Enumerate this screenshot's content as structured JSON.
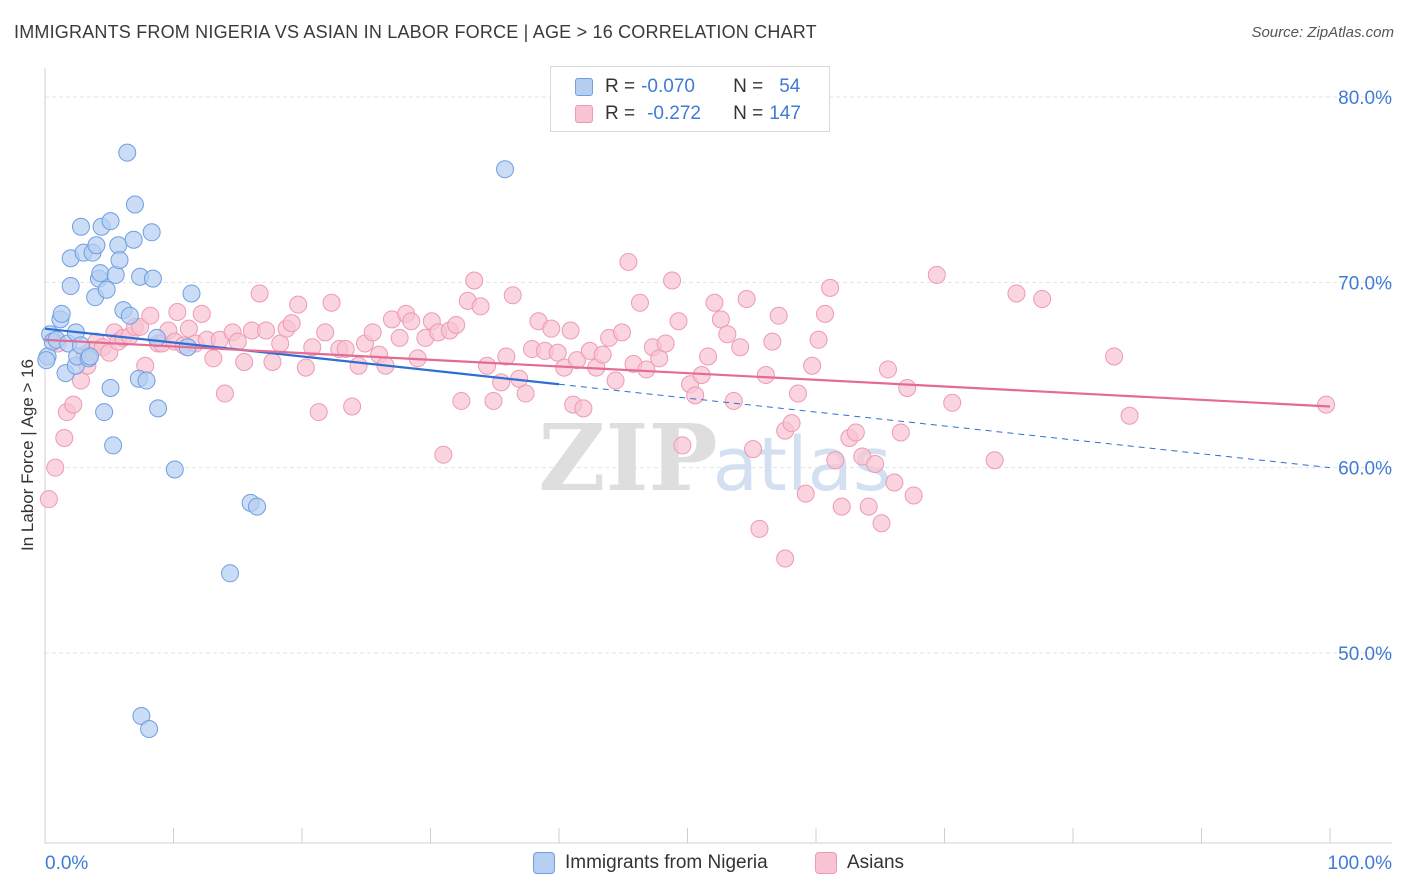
{
  "title": "IMMIGRANTS FROM NIGERIA VS ASIAN IN LABOR FORCE | AGE > 16 CORRELATION CHART",
  "source": "Source: ZipAtlas.com",
  "watermark": {
    "zip": "ZIP",
    "atlas": "atlas"
  },
  "colors": {
    "nigeria_fill": "#b5cef2",
    "nigeria_stroke": "#6f9fdf",
    "nigeria_line": "#2d6fd2",
    "asian_fill": "#f8c4d3",
    "asian_stroke": "#ee9ab3",
    "asian_line": "#e46b93",
    "axis_text": "#3f7bd6"
  },
  "legend": {
    "rows": [
      {
        "r_label": "R = ",
        "r_value": "-0.070",
        "n_label": "N = ",
        "n_value": "54"
      },
      {
        "r_label": "R = ",
        "r_value": "-0.272",
        "n_label": "N = ",
        "n_value": "147"
      }
    ]
  },
  "bottom_legend": [
    "Immigrants from Nigeria",
    "Asians"
  ],
  "chart_data": {
    "type": "scatter",
    "title": "IMMIGRANTS FROM NIGERIA VS ASIAN IN LABOR FORCE | AGE > 16 CORRELATION CHART",
    "xlabel": "",
    "ylabel": "In Labor Force | Age > 16",
    "xlim": [
      0,
      100
    ],
    "ylim": [
      41,
      81
    ],
    "x_tick_labels": [
      "0.0%",
      "100.0%"
    ],
    "y_ticks": [
      50,
      60,
      70,
      80
    ],
    "y_tick_labels": [
      "50.0%",
      "60.0%",
      "70.0%",
      "80.0%"
    ],
    "grid": true,
    "legend_position": "top-center",
    "series": [
      {
        "name": "Immigrants from Nigeria",
        "R": -0.07,
        "N": 54,
        "trend": {
          "x": [
            0,
            40,
            100
          ],
          "y": [
            67.5,
            64.5,
            60.0
          ],
          "solid_until_x": 40
        },
        "points": [
          [
            0.2,
            66.0
          ],
          [
            0.4,
            67.2
          ],
          [
            0.6,
            66.8
          ],
          [
            0.9,
            66.9
          ],
          [
            1.2,
            68.0
          ],
          [
            1.3,
            68.3
          ],
          [
            1.6,
            65.1
          ],
          [
            1.8,
            66.7
          ],
          [
            2.0,
            69.8
          ],
          [
            2.0,
            71.3
          ],
          [
            2.4,
            67.3
          ],
          [
            2.4,
            65.5
          ],
          [
            2.5,
            66.0
          ],
          [
            2.8,
            73.0
          ],
          [
            2.8,
            66.6
          ],
          [
            3.0,
            71.6
          ],
          [
            3.4,
            65.9
          ],
          [
            3.5,
            66.0
          ],
          [
            3.7,
            71.6
          ],
          [
            3.9,
            69.2
          ],
          [
            4.0,
            72.0
          ],
          [
            4.2,
            70.2
          ],
          [
            4.3,
            70.5
          ],
          [
            4.4,
            73.0
          ],
          [
            4.6,
            63.0
          ],
          [
            4.8,
            69.6
          ],
          [
            5.1,
            73.3
          ],
          [
            5.1,
            64.3
          ],
          [
            5.3,
            61.2
          ],
          [
            5.5,
            70.4
          ],
          [
            5.7,
            72.0
          ],
          [
            5.8,
            71.2
          ],
          [
            6.1,
            68.5
          ],
          [
            6.4,
            77.0
          ],
          [
            6.6,
            68.2
          ],
          [
            6.9,
            72.3
          ],
          [
            7.0,
            74.2
          ],
          [
            7.3,
            64.8
          ],
          [
            7.4,
            70.3
          ],
          [
            7.5,
            46.6
          ],
          [
            7.9,
            64.7
          ],
          [
            8.1,
            45.9
          ],
          [
            8.3,
            72.7
          ],
          [
            8.4,
            70.2
          ],
          [
            8.7,
            67.0
          ],
          [
            8.8,
            63.2
          ],
          [
            10.1,
            59.9
          ],
          [
            11.1,
            66.5
          ],
          [
            11.4,
            69.4
          ],
          [
            14.4,
            54.3
          ],
          [
            16.0,
            58.1
          ],
          [
            16.5,
            57.9
          ],
          [
            35.8,
            76.1
          ],
          [
            0.1,
            65.8
          ]
        ]
      },
      {
        "name": "Asians",
        "R": -0.272,
        "N": 147,
        "trend": {
          "x": [
            0,
            100
          ],
          "y": [
            66.9,
            63.3
          ]
        },
        "points": [
          [
            0.3,
            58.3
          ],
          [
            0.8,
            60.0
          ],
          [
            1.0,
            66.7
          ],
          [
            1.5,
            61.6
          ],
          [
            1.7,
            63.0
          ],
          [
            2.2,
            63.4
          ],
          [
            2.8,
            64.7
          ],
          [
            3.1,
            66.1
          ],
          [
            3.3,
            65.5
          ],
          [
            3.6,
            66.3
          ],
          [
            4.0,
            66.8
          ],
          [
            4.5,
            66.5
          ],
          [
            5.0,
            66.2
          ],
          [
            5.4,
            67.3
          ],
          [
            5.7,
            66.8
          ],
          [
            6.1,
            67.0
          ],
          [
            6.6,
            67.1
          ],
          [
            7.0,
            67.6
          ],
          [
            7.4,
            67.6
          ],
          [
            7.8,
            65.5
          ],
          [
            8.2,
            68.2
          ],
          [
            8.8,
            66.7
          ],
          [
            9.1,
            66.7
          ],
          [
            9.6,
            67.4
          ],
          [
            10.1,
            66.8
          ],
          [
            10.3,
            68.4
          ],
          [
            10.8,
            66.6
          ],
          [
            11.2,
            67.5
          ],
          [
            11.7,
            66.7
          ],
          [
            12.2,
            68.3
          ],
          [
            12.6,
            66.9
          ],
          [
            13.1,
            65.9
          ],
          [
            13.6,
            66.9
          ],
          [
            14.0,
            64.0
          ],
          [
            14.6,
            67.3
          ],
          [
            15.0,
            66.8
          ],
          [
            15.5,
            65.7
          ],
          [
            16.1,
            67.4
          ],
          [
            16.7,
            69.4
          ],
          [
            17.2,
            67.4
          ],
          [
            17.7,
            65.7
          ],
          [
            18.3,
            66.7
          ],
          [
            18.8,
            67.5
          ],
          [
            19.2,
            67.8
          ],
          [
            19.7,
            68.8
          ],
          [
            20.3,
            65.4
          ],
          [
            20.8,
            66.5
          ],
          [
            21.3,
            63.0
          ],
          [
            21.8,
            67.3
          ],
          [
            22.3,
            68.9
          ],
          [
            22.9,
            66.4
          ],
          [
            23.4,
            66.4
          ],
          [
            23.9,
            63.3
          ],
          [
            24.4,
            65.5
          ],
          [
            24.9,
            66.7
          ],
          [
            25.5,
            67.3
          ],
          [
            26.0,
            66.1
          ],
          [
            26.5,
            65.5
          ],
          [
            27.0,
            68.0
          ],
          [
            27.6,
            67.0
          ],
          [
            28.1,
            68.3
          ],
          [
            28.5,
            67.9
          ],
          [
            29.0,
            65.9
          ],
          [
            29.6,
            67.0
          ],
          [
            30.1,
            67.9
          ],
          [
            30.6,
            67.3
          ],
          [
            31.0,
            60.7
          ],
          [
            31.5,
            67.4
          ],
          [
            32.0,
            67.7
          ],
          [
            32.4,
            63.6
          ],
          [
            32.9,
            69.0
          ],
          [
            33.4,
            70.1
          ],
          [
            33.9,
            68.7
          ],
          [
            34.4,
            65.5
          ],
          [
            34.9,
            63.6
          ],
          [
            35.5,
            64.6
          ],
          [
            35.9,
            66.0
          ],
          [
            36.4,
            69.3
          ],
          [
            36.9,
            64.8
          ],
          [
            37.4,
            64.0
          ],
          [
            37.9,
            66.4
          ],
          [
            38.4,
            67.9
          ],
          [
            38.9,
            66.3
          ],
          [
            39.4,
            67.5
          ],
          [
            39.9,
            66.2
          ],
          [
            40.4,
            65.4
          ],
          [
            40.9,
            67.4
          ],
          [
            41.1,
            63.4
          ],
          [
            41.4,
            65.8
          ],
          [
            41.9,
            63.2
          ],
          [
            42.4,
            66.3
          ],
          [
            42.9,
            65.4
          ],
          [
            43.4,
            66.1
          ],
          [
            43.9,
            67.0
          ],
          [
            44.4,
            64.7
          ],
          [
            44.9,
            67.3
          ],
          [
            45.4,
            71.1
          ],
          [
            45.8,
            65.6
          ],
          [
            46.3,
            68.9
          ],
          [
            46.8,
            65.3
          ],
          [
            47.3,
            66.5
          ],
          [
            47.8,
            65.9
          ],
          [
            48.3,
            66.7
          ],
          [
            48.8,
            70.1
          ],
          [
            49.3,
            67.9
          ],
          [
            49.6,
            61.2
          ],
          [
            50.2,
            64.5
          ],
          [
            50.6,
            63.9
          ],
          [
            51.1,
            65.0
          ],
          [
            51.6,
            66.0
          ],
          [
            52.1,
            68.9
          ],
          [
            52.6,
            68.0
          ],
          [
            53.1,
            67.2
          ],
          [
            53.6,
            63.6
          ],
          [
            54.1,
            66.5
          ],
          [
            54.6,
            69.1
          ],
          [
            55.1,
            61.0
          ],
          [
            55.6,
            56.7
          ],
          [
            56.1,
            65.0
          ],
          [
            56.6,
            66.8
          ],
          [
            57.1,
            68.2
          ],
          [
            57.6,
            62.0
          ],
          [
            58.1,
            62.4
          ],
          [
            58.6,
            64.0
          ],
          [
            59.2,
            58.6
          ],
          [
            59.7,
            65.5
          ],
          [
            60.2,
            66.9
          ],
          [
            60.7,
            68.3
          ],
          [
            61.1,
            69.7
          ],
          [
            61.5,
            60.4
          ],
          [
            62.0,
            57.9
          ],
          [
            62.6,
            61.6
          ],
          [
            63.1,
            61.9
          ],
          [
            63.6,
            60.6
          ],
          [
            64.1,
            57.9
          ],
          [
            64.6,
            60.2
          ],
          [
            65.1,
            57.0
          ],
          [
            65.6,
            65.3
          ],
          [
            66.1,
            59.2
          ],
          [
            66.6,
            61.9
          ],
          [
            67.1,
            64.3
          ],
          [
            67.6,
            58.5
          ],
          [
            69.4,
            70.4
          ],
          [
            70.6,
            63.5
          ],
          [
            73.9,
            60.4
          ],
          [
            75.6,
            69.4
          ],
          [
            77.6,
            69.1
          ],
          [
            83.2,
            66.0
          ],
          [
            84.4,
            62.8
          ],
          [
            99.7,
            63.4
          ],
          [
            57.6,
            55.1
          ]
        ]
      }
    ]
  }
}
